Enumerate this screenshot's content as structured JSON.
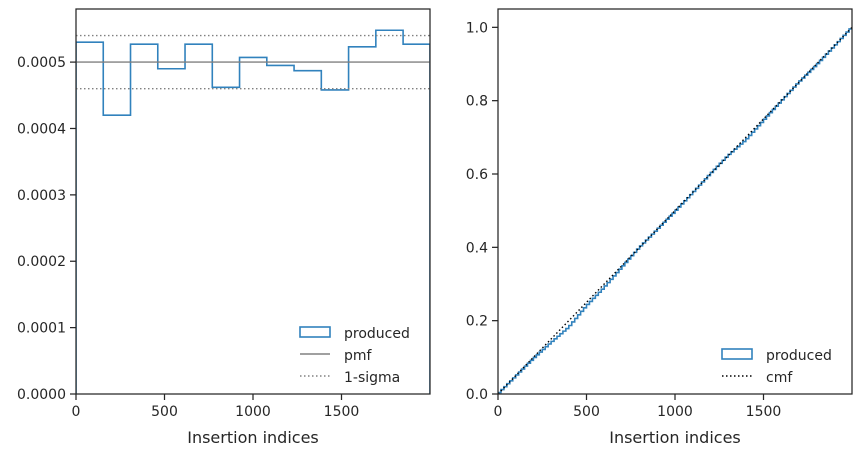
{
  "colors": {
    "produced": "#3182bd",
    "pmf": "#808080",
    "sigma": "#808080",
    "cmf": "#000000",
    "axis": "#262626"
  },
  "chart_data": [
    {
      "type": "histogram",
      "xlabel": "Insertion indices",
      "ylabel": "",
      "xlim": [
        0,
        2000
      ],
      "ylim": [
        0,
        0.00058
      ],
      "xticks": [
        0,
        500,
        1000,
        1500
      ],
      "xtick_labels": [
        "0",
        "500",
        "1000",
        "1500"
      ],
      "yticks": [
        0,
        0.0001,
        0.0002,
        0.0003,
        0.0004,
        0.0005
      ],
      "ytick_labels": [
        "0.0000",
        "0.0001",
        "0.0002",
        "0.0003",
        "0.0004",
        "0.0005"
      ],
      "bin_edges": [
        0,
        154,
        308,
        462,
        616,
        770,
        924,
        1078,
        1232,
        1386,
        1540,
        1694,
        1848,
        2000
      ],
      "series": [
        {
          "name": "produced",
          "style": "step",
          "values": [
            0.00053,
            0.00042,
            0.000527,
            0.00049,
            0.000527,
            0.000462,
            0.000507,
            0.000495,
            0.000487,
            0.000458,
            0.000523,
            0.000548,
            0.000527
          ]
        },
        {
          "name": "pmf",
          "style": "hline",
          "value": 0.0005
        },
        {
          "name": "1-sigma",
          "style": "hline-dotted",
          "values": [
            0.00054,
            0.00046
          ]
        }
      ],
      "legend": {
        "position": "lower-right",
        "entries": [
          "produced",
          "pmf",
          "1-sigma"
        ]
      },
      "grid": false
    },
    {
      "type": "line",
      "xlabel": "Insertion indices",
      "ylabel": "",
      "xlim": [
        0,
        2000
      ],
      "ylim": [
        0,
        1.05
      ],
      "xticks": [
        0,
        500,
        1000,
        1500
      ],
      "xtick_labels": [
        "0",
        "500",
        "1000",
        "1500"
      ],
      "yticks": [
        0,
        0.2,
        0.4,
        0.6,
        0.8,
        1.0
      ],
      "ytick_labels": [
        "0.0",
        "0.2",
        "0.4",
        "0.6",
        "0.8",
        "1.0"
      ],
      "series": [
        {
          "name": "produced",
          "style": "step",
          "x": [
            0,
            100,
            200,
            300,
            400,
            500,
            600,
            700,
            800,
            900,
            1000,
            1100,
            1200,
            1300,
            1400,
            1500,
            1600,
            1700,
            1800,
            1900,
            2000
          ],
          "y": [
            0,
            0.048,
            0.096,
            0.14,
            0.182,
            0.24,
            0.29,
            0.345,
            0.4,
            0.448,
            0.497,
            0.548,
            0.6,
            0.65,
            0.692,
            0.745,
            0.798,
            0.85,
            0.897,
            0.948,
            1.0
          ]
        },
        {
          "name": "cmf",
          "style": "dotted",
          "x": [
            0,
            2000
          ],
          "y": [
            0,
            1.0
          ]
        }
      ],
      "legend": {
        "position": "lower-right",
        "entries": [
          "produced",
          "cmf"
        ]
      },
      "grid": false
    }
  ]
}
